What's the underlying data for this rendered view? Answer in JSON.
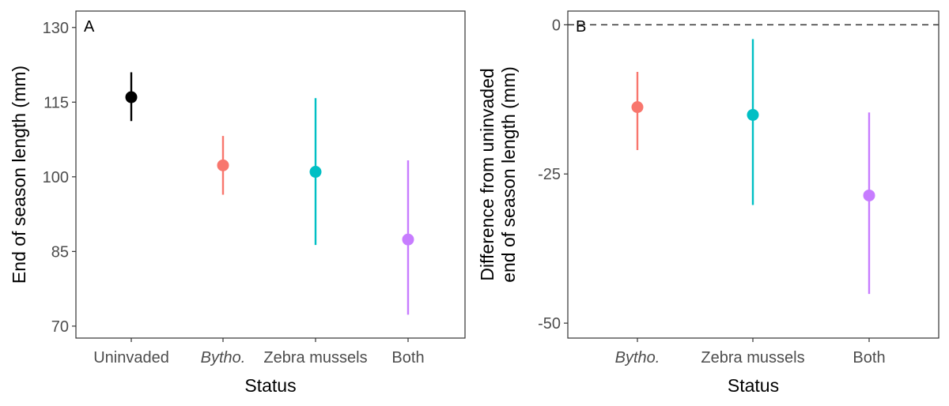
{
  "chart_data": [
    {
      "type": "scatter",
      "panel_label": "A",
      "xlabel": "Status",
      "ylabel": "End of season length (mm)",
      "categories": [
        {
          "label": "Uninvaded",
          "italic": false
        },
        {
          "label": "Bytho.",
          "italic": true
        },
        {
          "label": "Zebra mussels",
          "italic": false
        },
        {
          "label": "Both",
          "italic": false
        }
      ],
      "points": [
        {
          "category": "Uninvaded",
          "value": 116,
          "lower": 111.2,
          "upper": 121,
          "color": "#000000"
        },
        {
          "category": "Bytho.",
          "value": 102.3,
          "lower": 96.4,
          "upper": 108.2,
          "color": "#F8766D"
        },
        {
          "category": "Zebra mussels",
          "value": 101,
          "lower": 86.3,
          "upper": 115.8,
          "color": "#00BFC4"
        },
        {
          "category": "Both",
          "value": 87.4,
          "lower": 72.3,
          "upper": 103.3,
          "color": "#C77CFF"
        }
      ],
      "yticks": [
        70,
        85,
        100,
        115,
        130
      ],
      "ylim": [
        67.6,
        133.3
      ],
      "grid": false
    },
    {
      "type": "scatter",
      "panel_label": "B",
      "xlabel": "Status",
      "ylabel": "Difference from uninvaded\nend of season length (mm)",
      "categories": [
        {
          "label": "Bytho.",
          "italic": true
        },
        {
          "label": "Zebra mussels",
          "italic": false
        },
        {
          "label": "Both",
          "italic": false
        }
      ],
      "points": [
        {
          "category": "Bytho.",
          "value": -13.8,
          "lower": -21,
          "upper": -7.9,
          "color": "#F8766D"
        },
        {
          "category": "Zebra mussels",
          "value": -15.1,
          "lower": -30.2,
          "upper": -2.4,
          "color": "#00BFC4"
        },
        {
          "category": "Both",
          "value": -28.6,
          "lower": -45.1,
          "upper": -14.7,
          "color": "#C77CFF"
        }
      ],
      "reference_line": {
        "value": 0,
        "style": "dashed",
        "color": "#333333"
      },
      "yticks": [
        -50,
        -25,
        0
      ],
      "ylim": [
        -52.5,
        2.3
      ],
      "grid": false
    }
  ]
}
